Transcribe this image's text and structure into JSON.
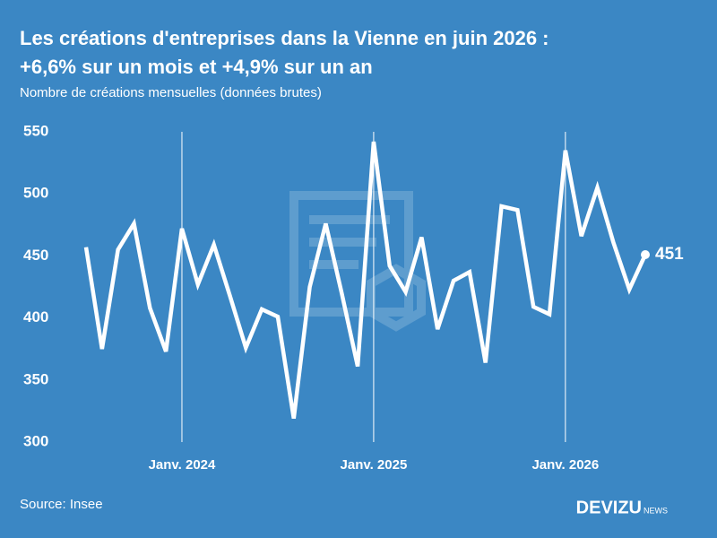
{
  "chart_data": {
    "type": "line",
    "title": [
      "Les créations d'entreprises dans la Vienne en juin 2026 :",
      "+6,6% sur un mois et +4,9% sur un an"
    ],
    "subtitle": "Nombre de créations mensuelles (données brutes)",
    "categories": [
      null,
      null,
      null,
      null,
      null,
      null,
      "Janv. 2024",
      null,
      null,
      null,
      null,
      null,
      null,
      null,
      null,
      null,
      null,
      null,
      "Janv. 2025",
      null,
      null,
      null,
      null,
      null,
      null,
      null,
      null,
      null,
      null,
      null,
      "Janv. 2026",
      null,
      null,
      null,
      null,
      null
    ],
    "values": [
      457,
      375,
      455,
      476,
      408,
      373,
      472,
      427,
      459,
      418,
      376,
      407,
      401,
      319,
      425,
      476,
      420,
      361,
      542,
      442,
      421,
      465,
      391,
      430,
      437,
      364,
      490,
      487,
      409,
      403,
      535,
      466,
      505,
      461,
      423,
      451
    ],
    "color": "#ffffff",
    "ylim": [
      300,
      550
    ],
    "yticks": [
      300,
      350,
      400,
      450,
      500,
      550
    ],
    "source": "Source: Insee",
    "brand": "DEVIZU",
    "brand_suffix": "NEWS"
  }
}
